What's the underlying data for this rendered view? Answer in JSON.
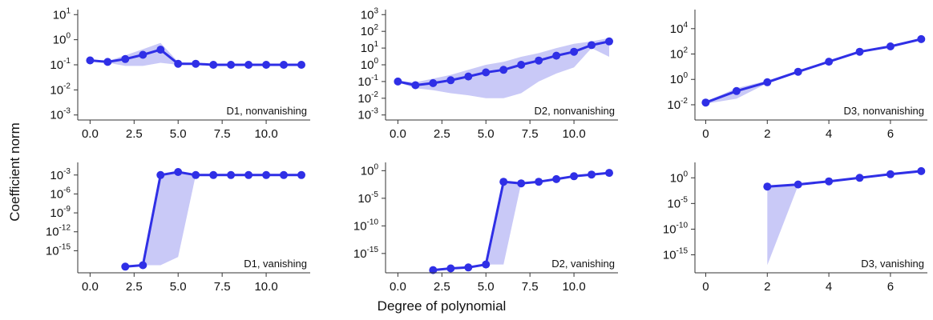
{
  "figure": {
    "ylabel": "Coefficient norm",
    "xlabel": "Degree of polynomial",
    "line_color": "#2f2fe6",
    "band_color": "#c9c9f7"
  },
  "chart_data": [
    {
      "type": "line",
      "label": "D1, nonvanishing",
      "yscale": "log",
      "x": [
        0,
        1,
        2,
        3,
        4,
        5,
        6,
        7,
        8,
        9,
        10,
        11,
        12
      ],
      "y": [
        0.15,
        0.13,
        0.17,
        0.25,
        0.4,
        0.11,
        0.11,
        0.1,
        0.1,
        0.1,
        0.1,
        0.1,
        0.1
      ],
      "band_low": [
        0.14,
        0.12,
        0.09,
        0.09,
        0.12,
        0.1,
        0.1,
        0.1,
        0.1,
        0.1,
        0.1,
        0.1,
        0.1
      ],
      "band_high": [
        0.16,
        0.14,
        0.24,
        0.42,
        0.75,
        0.13,
        0.11,
        0.1,
        0.1,
        0.1,
        0.1,
        0.1,
        0.1
      ],
      "xlim": [
        -0.7,
        12.5
      ],
      "ylim_log10": [
        -3.2,
        1.2
      ],
      "xticks": [
        "0.0",
        "2.5",
        "5.0",
        "7.5",
        "10.0"
      ],
      "xtick_values": [
        0,
        2.5,
        5,
        7.5,
        10
      ],
      "yticks": [
        "-3",
        "-2",
        "-1",
        "0",
        "1"
      ],
      "ytick_values": [
        -3,
        -2,
        -1,
        0,
        1
      ]
    },
    {
      "type": "line",
      "label": "D2, nonvanishing",
      "yscale": "log",
      "x": [
        0,
        1,
        2,
        3,
        4,
        5,
        6,
        7,
        8,
        9,
        10,
        11,
        12
      ],
      "y": [
        0.1,
        0.06,
        0.08,
        0.12,
        0.2,
        0.35,
        0.5,
        1,
        1.8,
        3.5,
        6,
        15,
        25
      ],
      "band_low": [
        0.09,
        0.04,
        0.03,
        0.02,
        0.015,
        0.01,
        0.01,
        0.02,
        0.1,
        0.3,
        0.7,
        10,
        3
      ],
      "band_high": [
        0.11,
        0.09,
        0.15,
        0.25,
        0.5,
        1,
        1.5,
        3,
        5,
        10,
        18,
        25,
        40
      ],
      "xlim": [
        -0.7,
        12.5
      ],
      "ylim_log10": [
        -3.3,
        3.3
      ],
      "xticks": [
        "0.0",
        "2.5",
        "5.0",
        "7.5",
        "10.0"
      ],
      "xtick_values": [
        0,
        2.5,
        5,
        7.5,
        10
      ],
      "yticks": [
        "-3",
        "-2",
        "-1",
        "0",
        "1",
        "2",
        "3"
      ],
      "ytick_values": [
        -3,
        -2,
        -1,
        0,
        1,
        2,
        3
      ]
    },
    {
      "type": "line",
      "label": "D3, nonvanishing",
      "yscale": "log",
      "x": [
        0,
        1,
        2,
        3,
        4,
        5,
        6,
        7
      ],
      "y": [
        0.015,
        0.12,
        0.6,
        4,
        25,
        150,
        400,
        1500
      ],
      "band_low": [
        0.012,
        0.03,
        0.5,
        3.5,
        22,
        140,
        380,
        1400
      ],
      "band_high": [
        0.018,
        0.2,
        0.8,
        5,
        30,
        170,
        450,
        1700
      ],
      "xlim": [
        -0.35,
        7.2
      ],
      "ylim_log10": [
        -3.2,
        5.5
      ],
      "xticks": [
        "0",
        "2",
        "4",
        "6"
      ],
      "xtick_values": [
        0,
        2,
        4,
        6
      ],
      "yticks": [
        "-2",
        "0",
        "2",
        "4"
      ],
      "ytick_values": [
        -2,
        0,
        2,
        4
      ]
    },
    {
      "type": "line",
      "label": "D1, vanishing",
      "yscale": "log",
      "x": [
        2,
        3,
        4,
        5,
        6,
        7,
        8,
        9,
        10,
        11,
        12
      ],
      "y": [
        3e-18,
        5e-18,
        0.001,
        0.003,
        0.001,
        0.001,
        0.001,
        0.001,
        0.001,
        0.001,
        0.001
      ],
      "band_low": [
        3e-18,
        5e-18,
        5e-18,
        1e-16,
        0.001,
        0.001,
        0.001,
        0.001,
        0.001,
        0.001,
        0.001
      ],
      "band_high": [
        3e-18,
        5e-18,
        0.0015,
        0.004,
        0.0015,
        0.001,
        0.001,
        0.001,
        0.001,
        0.001,
        0.001
      ],
      "xlim": [
        -0.7,
        12.5
      ],
      "ylim_log10": [
        -18.5,
        -1
      ],
      "xticks": [
        "0.0",
        "2.5",
        "5.0",
        "7.5",
        "10.0"
      ],
      "xtick_values": [
        0,
        2.5,
        5,
        7.5,
        10
      ],
      "yticks": [
        "-3",
        "-6",
        "-9",
        "-12",
        "-15"
      ],
      "ytick_values": [
        -3,
        -6,
        -9,
        -12,
        -15
      ]
    },
    {
      "type": "line",
      "label": "D2, vanishing",
      "yscale": "log",
      "x": [
        2,
        3,
        4,
        5,
        6,
        7,
        8,
        9,
        10,
        11,
        12
      ],
      "y": [
        1e-18,
        2e-18,
        3e-18,
        1e-17,
        0.01,
        0.005,
        0.01,
        0.03,
        0.1,
        0.2,
        0.4
      ],
      "band_low": [
        1e-18,
        2e-18,
        3e-18,
        1e-17,
        1e-17,
        0.005,
        0.01,
        0.03,
        0.1,
        0.2,
        0.4
      ],
      "band_high": [
        1e-18,
        2e-18,
        3e-18,
        1e-17,
        0.01,
        0.006,
        0.012,
        0.04,
        0.12,
        0.25,
        0.5
      ],
      "xlim": [
        -0.7,
        12.5
      ],
      "ylim_log10": [
        -18.5,
        1.5
      ],
      "xticks": [
        "0.0",
        "2.5",
        "5.0",
        "7.5",
        "10.0"
      ],
      "xtick_values": [
        0,
        2.5,
        5,
        7.5,
        10
      ],
      "yticks": [
        "0",
        "-5",
        "-10",
        "-15"
      ],
      "ytick_values": [
        0,
        -5,
        -10,
        -15
      ]
    },
    {
      "type": "line",
      "label": "D3, vanishing",
      "yscale": "log",
      "x": [
        2,
        3,
        4,
        5,
        6,
        7
      ],
      "y": [
        0.02,
        0.05,
        0.2,
        1,
        5,
        20
      ],
      "band_low": [
        1e-17,
        0.03,
        0.15,
        0.8,
        4,
        15
      ],
      "band_high": [
        0.03,
        0.07,
        0.25,
        1.2,
        6,
        25
      ],
      "xlim": [
        -0.35,
        7.2
      ],
      "ylim_log10": [
        -18.5,
        3
      ],
      "xticks": [
        "0",
        "2",
        "4",
        "6"
      ],
      "xtick_values": [
        0,
        2,
        4,
        6
      ],
      "yticks": [
        "0",
        "-5",
        "-10",
        "-15"
      ],
      "ytick_values": [
        0,
        -5,
        -10,
        -15
      ]
    }
  ]
}
